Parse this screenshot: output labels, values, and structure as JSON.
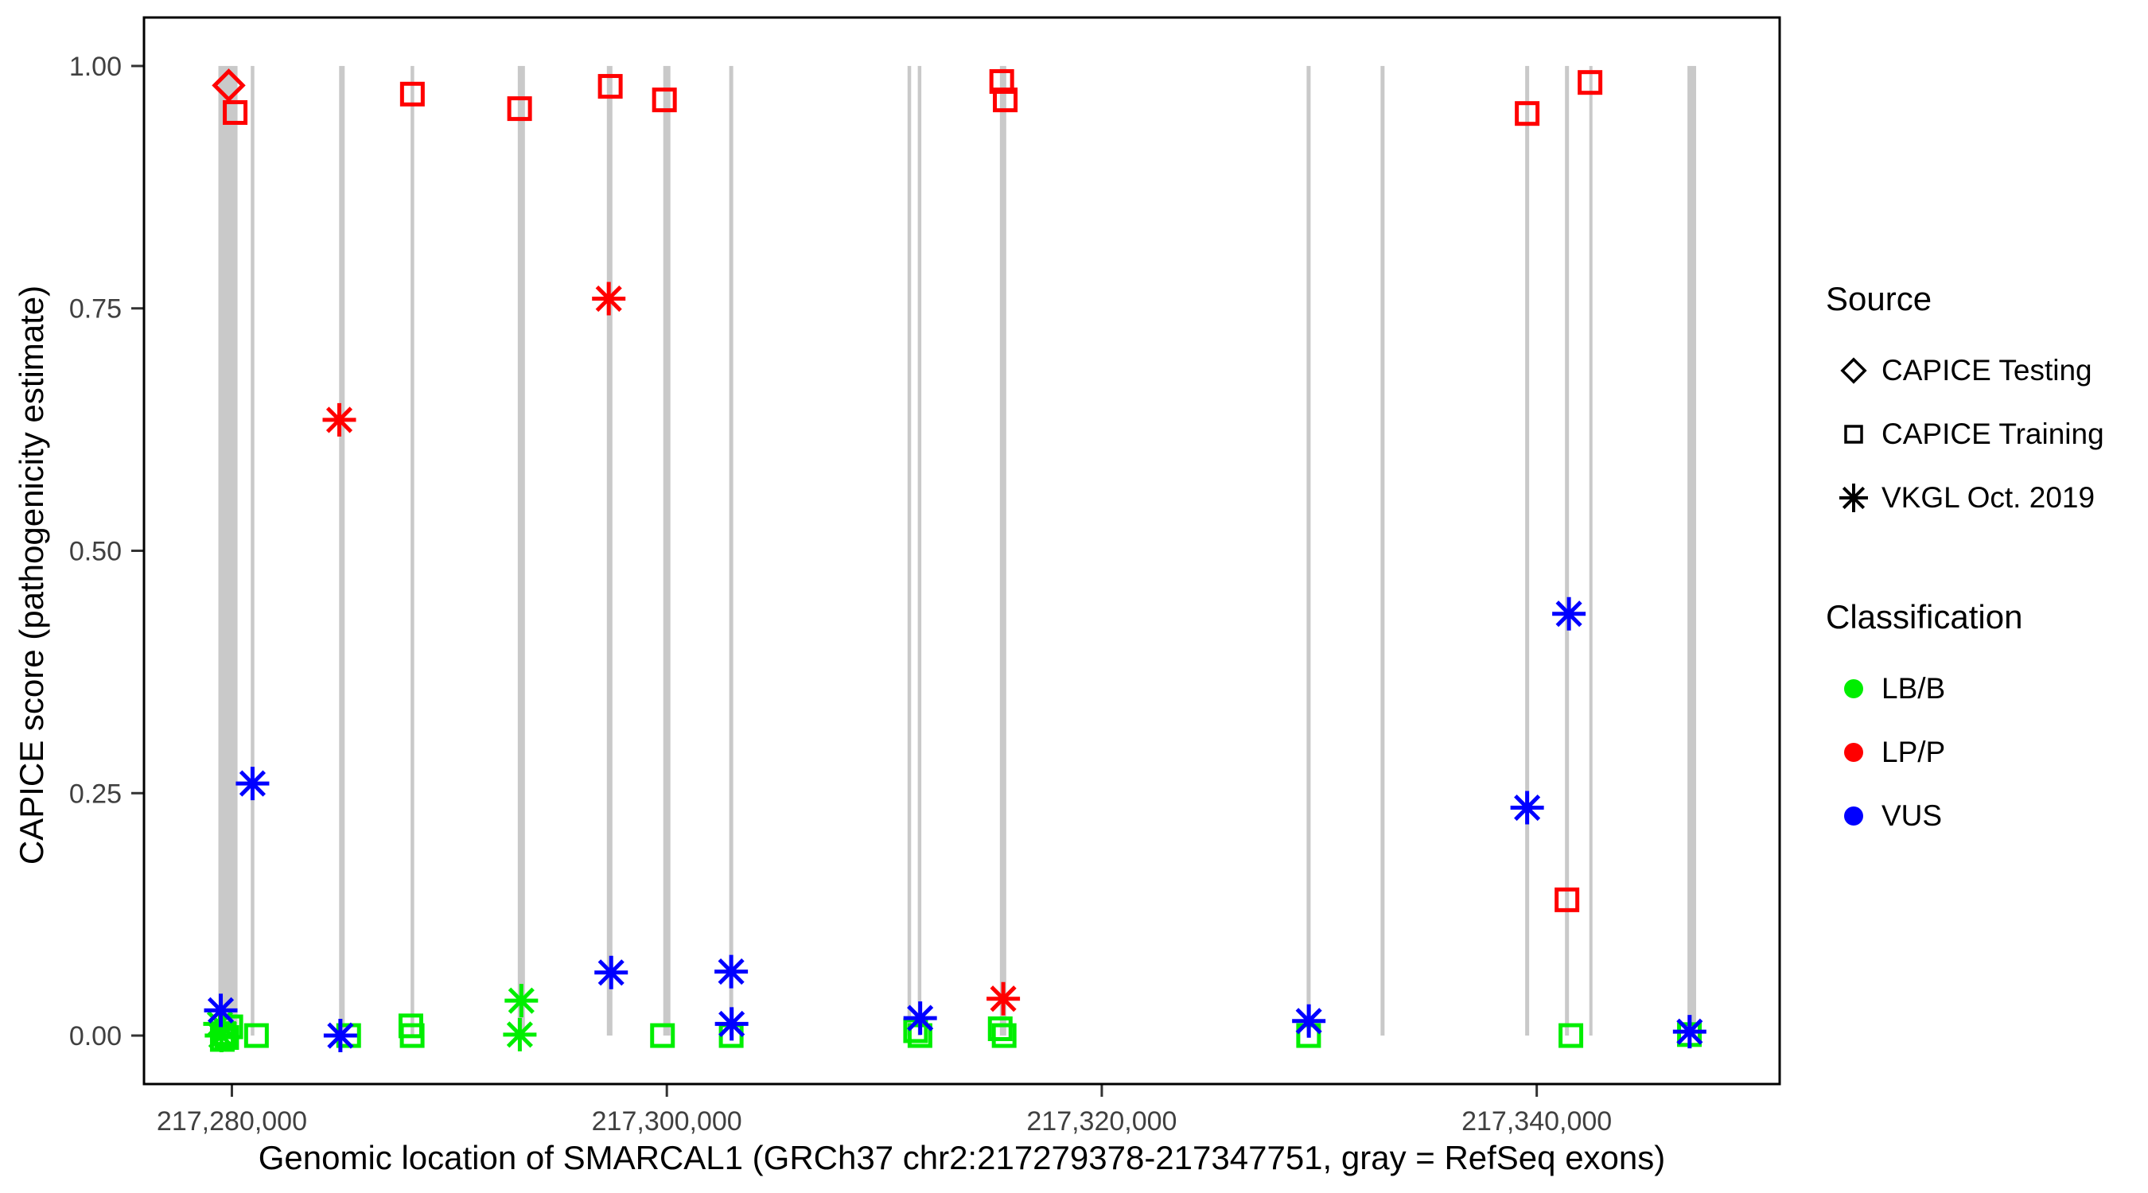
{
  "figure": {
    "background": "#FFFFFF"
  },
  "y_axis_title": "CAPICE score (pathogenicity estimate)",
  "x_axis_title": "Genomic location of SMARCAL1 (GRCh37 chr2:217279378-217347751, gray = RefSeq exons)",
  "legend": {
    "source": {
      "title": "Source",
      "items": [
        {
          "label": "CAPICE Testing",
          "shape": "diamond"
        },
        {
          "label": "CAPICE Training",
          "shape": "square"
        },
        {
          "label": "VKGL Oct. 2019",
          "shape": "asterisk"
        }
      ]
    },
    "classification": {
      "title": "Classification",
      "items": [
        {
          "label": "LB/B",
          "color_key": "LB/B"
        },
        {
          "label": "LP/P",
          "color_key": "LP/P"
        },
        {
          "label": "VUS",
          "color_key": "VUS"
        }
      ]
    }
  },
  "colors": {
    "LB/B": "#00EE00",
    "LP/P": "#FF0000",
    "VUS": "#0000FF",
    "exon": "#C9C9C9",
    "axis_text": "#404040",
    "border": "#000000"
  },
  "chart_data": {
    "type": "scatter",
    "title": "",
    "xlabel": "Genomic location of SMARCAL1 (GRCh37 chr2:217279378-217347751, gray = RefSeq exons)",
    "ylabel": "CAPICE score (pathogenicity estimate)",
    "xlim": [
      217275959,
      217351170
    ],
    "ylim": [
      -0.05,
      1.05
    ],
    "grid": false,
    "legend_position": "right",
    "x_ticks": [
      {
        "value": 217280000,
        "label": "217,280,000"
      },
      {
        "value": 217300000,
        "label": "217,300,000"
      },
      {
        "value": 217320000,
        "label": "217,320,000"
      },
      {
        "value": 217340000,
        "label": "217,340,000"
      }
    ],
    "y_ticks": [
      {
        "value": 0.0,
        "label": "0.00"
      },
      {
        "value": 0.25,
        "label": "0.25"
      },
      {
        "value": 0.5,
        "label": "0.50"
      },
      {
        "value": 0.75,
        "label": "0.75"
      },
      {
        "value": 1.0,
        "label": "1.00"
      }
    ],
    "exons": [
      {
        "start": 217279380,
        "end": 217280260
      },
      {
        "start": 217280868,
        "end": 217281033
      },
      {
        "start": 217284932,
        "end": 217285188
      },
      {
        "start": 217288218,
        "end": 217288383
      },
      {
        "start": 217293146,
        "end": 217293475
      },
      {
        "start": 217297242,
        "end": 217297498
      },
      {
        "start": 217299836,
        "end": 217300165
      },
      {
        "start": 217302869,
        "end": 217303052
      },
      {
        "start": 217311068,
        "end": 217311233
      },
      {
        "start": 217311538,
        "end": 217311703
      },
      {
        "start": 217315314,
        "end": 217315607
      },
      {
        "start": 217329419,
        "end": 217329602
      },
      {
        "start": 217332819,
        "end": 217333002
      },
      {
        "start": 217339469,
        "end": 217339652
      },
      {
        "start": 217341299,
        "end": 217341482
      },
      {
        "start": 217342417,
        "end": 217342563
      },
      {
        "start": 217346930,
        "end": 217347330
      }
    ],
    "exon_y_range": [
      0.0,
      1.0
    ],
    "points": [
      {
        "g": 217279855,
        "s": 0.98,
        "source": "testing",
        "cls": "LP/P"
      },
      {
        "g": 217280150,
        "s": 0.952,
        "source": "training",
        "cls": "LP/P"
      },
      {
        "g": 217288300,
        "s": 0.971,
        "source": "training",
        "cls": "LP/P"
      },
      {
        "g": 217293230,
        "s": 0.956,
        "source": "training",
        "cls": "LP/P"
      },
      {
        "g": 217297400,
        "s": 0.979,
        "source": "training",
        "cls": "LP/P"
      },
      {
        "g": 217299890,
        "s": 0.965,
        "source": "training",
        "cls": "LP/P"
      },
      {
        "g": 217315400,
        "s": 0.984,
        "source": "training",
        "cls": "LP/P"
      },
      {
        "g": 217315560,
        "s": 0.965,
        "source": "training",
        "cls": "LP/P"
      },
      {
        "g": 217339560,
        "s": 0.951,
        "source": "training",
        "cls": "LP/P"
      },
      {
        "g": 217341390,
        "s": 0.14,
        "source": "training",
        "cls": "LP/P"
      },
      {
        "g": 217342450,
        "s": 0.983,
        "source": "training",
        "cls": "LP/P"
      },
      {
        "g": 217284940,
        "s": 0.635,
        "source": "vkgl",
        "cls": "LP/P"
      },
      {
        "g": 217297330,
        "s": 0.76,
        "source": "vkgl",
        "cls": "LP/P"
      },
      {
        "g": 217315470,
        "s": 0.038,
        "source": "vkgl",
        "cls": "LP/P"
      },
      {
        "g": 217279450,
        "s": 0.012,
        "source": "vkgl",
        "cls": "LB/B"
      },
      {
        "g": 217279520,
        "s": 0.0,
        "source": "vkgl",
        "cls": "LB/B"
      },
      {
        "g": 217293310,
        "s": 0.036,
        "source": "vkgl",
        "cls": "LB/B"
      },
      {
        "g": 217293240,
        "s": 0.001,
        "source": "vkgl",
        "cls": "LB/B"
      },
      {
        "g": 217279630,
        "s": 0.002,
        "source": "training",
        "cls": "LB/B"
      },
      {
        "g": 217279760,
        "s": -0.002,
        "source": "training",
        "cls": "LB/B"
      },
      {
        "g": 217279560,
        "s": -0.004,
        "source": "training",
        "cls": "LB/B"
      },
      {
        "g": 217279950,
        "s": 0.009,
        "source": "training",
        "cls": "LB/B"
      },
      {
        "g": 217281130,
        "s": 0.0,
        "source": "training",
        "cls": "LB/B"
      },
      {
        "g": 217285370,
        "s": 0.0,
        "source": "training",
        "cls": "LB/B"
      },
      {
        "g": 217288230,
        "s": 0.01,
        "source": "training",
        "cls": "LB/B"
      },
      {
        "g": 217288290,
        "s": 0.0,
        "source": "training",
        "cls": "LB/B"
      },
      {
        "g": 217299800,
        "s": 0.0,
        "source": "training",
        "cls": "LB/B"
      },
      {
        "g": 217302960,
        "s": 0.0,
        "source": "training",
        "cls": "LB/B"
      },
      {
        "g": 217311440,
        "s": 0.005,
        "source": "training",
        "cls": "LB/B"
      },
      {
        "g": 217311640,
        "s": 0.0,
        "source": "training",
        "cls": "LB/B"
      },
      {
        "g": 217315330,
        "s": 0.007,
        "source": "training",
        "cls": "LB/B"
      },
      {
        "g": 217315510,
        "s": 0.0,
        "source": "training",
        "cls": "LB/B"
      },
      {
        "g": 217329510,
        "s": 0.0,
        "source": "training",
        "cls": "LB/B"
      },
      {
        "g": 217341570,
        "s": 0.0,
        "source": "training",
        "cls": "LB/B"
      },
      {
        "g": 217347020,
        "s": 0.001,
        "source": "training",
        "cls": "LB/B"
      },
      {
        "g": 217279490,
        "s": 0.026,
        "source": "vkgl",
        "cls": "VUS"
      },
      {
        "g": 217280950,
        "s": 0.26,
        "source": "vkgl",
        "cls": "VUS"
      },
      {
        "g": 217284990,
        "s": 0.0,
        "source": "vkgl",
        "cls": "VUS"
      },
      {
        "g": 217297440,
        "s": 0.065,
        "source": "vkgl",
        "cls": "VUS"
      },
      {
        "g": 217302960,
        "s": 0.066,
        "source": "vkgl",
        "cls": "VUS"
      },
      {
        "g": 217302980,
        "s": 0.012,
        "source": "vkgl",
        "cls": "VUS"
      },
      {
        "g": 217311650,
        "s": 0.018,
        "source": "vkgl",
        "cls": "VUS"
      },
      {
        "g": 217329520,
        "s": 0.015,
        "source": "vkgl",
        "cls": "VUS"
      },
      {
        "g": 217339560,
        "s": 0.235,
        "source": "vkgl",
        "cls": "VUS"
      },
      {
        "g": 217341480,
        "s": 0.435,
        "source": "vkgl",
        "cls": "VUS"
      },
      {
        "g": 217347030,
        "s": 0.004,
        "source": "vkgl",
        "cls": "VUS"
      }
    ]
  }
}
